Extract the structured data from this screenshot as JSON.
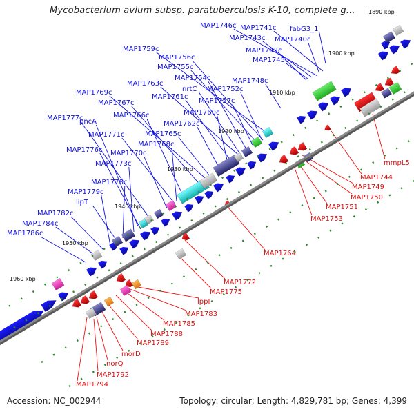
{
  "title": "Mycobacterium avium subsp. paratuberculosis K-10, complete g...",
  "footer": {
    "accession": "Accession: NC_002944",
    "summary": "Topology: circular; Length: 4,829,781 bp; Genes: 4,399"
  },
  "colors": {
    "forward": "#1111dd",
    "reverse": "#ee1111",
    "backbone": "#8a8a8a",
    "tick": "#2a8a2a",
    "accent_green": "#33bb33",
    "accent_cyan": "#22cccc",
    "accent_magenta": "#ee44bb",
    "accent_gray": "#aaaaaa",
    "accent_navy": "#333388",
    "accent_orange": "#ff9922"
  },
  "kbp_labels": [
    "1890 kbp",
    "1900 kbp",
    "1910 kbp",
    "1920 kbp",
    "1930 kbp",
    "1940 kbp",
    "1950 kbp",
    "1960 kbp"
  ],
  "forward_genes": [
    "MAP1746c",
    "MAP1741c",
    "fabG3_1",
    "MAP1743c",
    "MAP1740c",
    "MAP1759c",
    "MAP1742c",
    "MAP1756c",
    "MAP1745c",
    "MAP1755c",
    "MAP1754c",
    "MAP1748c",
    "MAP1763c",
    "nrtC",
    "MAP1752c",
    "MAP1769c",
    "MAP1761c",
    "MAP1757c",
    "MAP1767c",
    "MAP1760c",
    "MAP1766c",
    "MAP1762c",
    "MAP1777c",
    "pncA",
    "MAP1765c",
    "MAP1771c",
    "MAP1768c",
    "MAP1776c",
    "MAP1770c",
    "MAP1773c",
    "MAP1778c",
    "MAP1779c",
    "lipT",
    "MAP1782c",
    "MAP1784c",
    "MAP1786c"
  ],
  "reverse_genes": [
    "mmpL5",
    "MAP1744",
    "MAP1749",
    "MAP1750",
    "MAP1751",
    "MAP1753",
    "MAP1764",
    "MAP1772",
    "MAP1775",
    "lppI",
    "MAP1783",
    "MAP1785",
    "MAP1788",
    "MAP1789",
    "morD",
    "norQ",
    "MAP1792",
    "MAP1794"
  ]
}
